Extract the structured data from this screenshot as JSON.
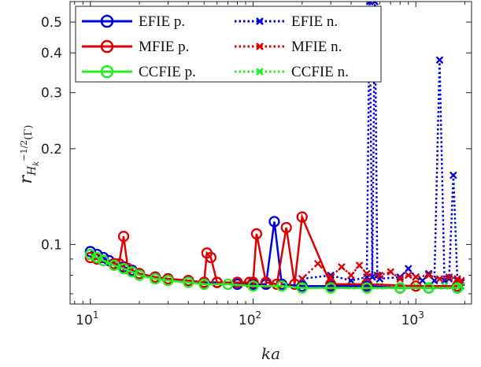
{
  "chart_data": {
    "type": "line",
    "xlabel": "ka",
    "ylabel": {
      "main": "r",
      "sub": "H",
      "sub2": "k",
      "sup": "−1/2",
      "tail": "(Γ)"
    },
    "x_scale": "log",
    "y_scale": "log",
    "xlim": [
      7.5,
      2200
    ],
    "ylim": [
      0.065,
      0.58
    ],
    "x_ticks": [
      10,
      100,
      1000
    ],
    "x_tick_labels": [
      {
        "base": "10",
        "exp": "1"
      },
      {
        "base": "10",
        "exp": "2"
      },
      {
        "base": "10",
        "exp": "3"
      }
    ],
    "y_ticks": [
      0.1,
      0.2,
      0.3,
      0.4,
      0.5
    ],
    "y_tick_labels": [
      "0.1",
      "0.2",
      "0.3",
      "0.4",
      "0.5"
    ],
    "grid": false,
    "legend_position": "top-left",
    "series": [
      {
        "name": "EFIE p.",
        "color": "#0000dd",
        "line": "solid",
        "marker": "circle",
        "x": [
          10,
          11,
          12,
          13,
          14,
          16,
          18,
          20,
          25,
          30,
          40,
          50,
          60,
          80,
          100,
          120,
          135,
          150,
          200,
          300,
          500,
          800,
          1200,
          1800
        ],
        "y": [
          0.095,
          0.093,
          0.091,
          0.089,
          0.087,
          0.085,
          0.083,
          0.081,
          0.079,
          0.078,
          0.077,
          0.076,
          0.076,
          0.075,
          0.075,
          0.075,
          0.118,
          0.075,
          0.074,
          0.074,
          0.074,
          0.073,
          0.073,
          0.073
        ]
      },
      {
        "name": "MFIE p.",
        "color": "#dd0000",
        "line": "solid",
        "marker": "circle",
        "x": [
          10,
          11,
          12,
          14,
          15,
          16,
          17,
          20,
          25,
          30,
          40,
          50,
          52,
          55,
          60,
          80,
          95,
          100,
          105,
          120,
          140,
          160,
          180,
          200,
          300,
          500,
          1000,
          1800
        ],
        "y": [
          0.091,
          0.09,
          0.089,
          0.087,
          0.087,
          0.106,
          0.084,
          0.081,
          0.079,
          0.078,
          0.077,
          0.076,
          0.094,
          0.091,
          0.076,
          0.076,
          0.076,
          0.076,
          0.108,
          0.076,
          0.075,
          0.113,
          0.075,
          0.122,
          0.075,
          0.075,
          0.074,
          0.074
        ]
      },
      {
        "name": "CCFIE p.",
        "color": "#22ee22",
        "line": "solid",
        "marker": "circle",
        "x": [
          10,
          11,
          12,
          14,
          16,
          18,
          20,
          25,
          30,
          40,
          50,
          70,
          100,
          150,
          200,
          300,
          500,
          800,
          1200,
          1800
        ],
        "y": [
          0.093,
          0.091,
          0.089,
          0.086,
          0.084,
          0.082,
          0.08,
          0.078,
          0.077,
          0.076,
          0.075,
          0.075,
          0.074,
          0.074,
          0.073,
          0.073,
          0.073,
          0.073,
          0.073,
          0.073
        ]
      },
      {
        "name": "EFIE n.",
        "color": "#0000dd",
        "line": "dotted",
        "marker": "x",
        "x": [
          200,
          300,
          400,
          500,
          520,
          540,
          560,
          580,
          600,
          800,
          900,
          1000,
          1100,
          1200,
          1300,
          1400,
          1500,
          1600,
          1700,
          1800,
          1900
        ],
        "y": [
          0.078,
          0.08,
          0.077,
          0.079,
          0.58,
          0.079,
          0.58,
          0.08,
          0.078,
          0.079,
          0.084,
          0.079,
          0.077,
          0.081,
          0.077,
          0.38,
          0.077,
          0.078,
          0.165,
          0.077,
          0.076
        ]
      },
      {
        "name": "MFIE n.",
        "color": "#dd0000",
        "line": "dotted",
        "marker": "x",
        "x": [
          200,
          250,
          300,
          350,
          400,
          450,
          500,
          600,
          700,
          800,
          900,
          1000,
          1200,
          1400,
          1600,
          1800,
          1900
        ],
        "y": [
          0.078,
          0.087,
          0.079,
          0.085,
          0.08,
          0.086,
          0.081,
          0.08,
          0.082,
          0.078,
          0.08,
          0.079,
          0.08,
          0.078,
          0.079,
          0.078,
          0.077
        ]
      },
      {
        "name": "CCFIE n.",
        "color": "#22ee22",
        "line": "dotted",
        "marker": "x",
        "x": [
          200,
          300,
          400,
          500,
          600,
          800,
          1000,
          1200,
          1500,
          1800,
          1900
        ],
        "y": [
          0.074,
          0.074,
          0.074,
          0.074,
          0.074,
          0.074,
          0.074,
          0.074,
          0.074,
          0.074,
          0.074
        ]
      }
    ]
  }
}
